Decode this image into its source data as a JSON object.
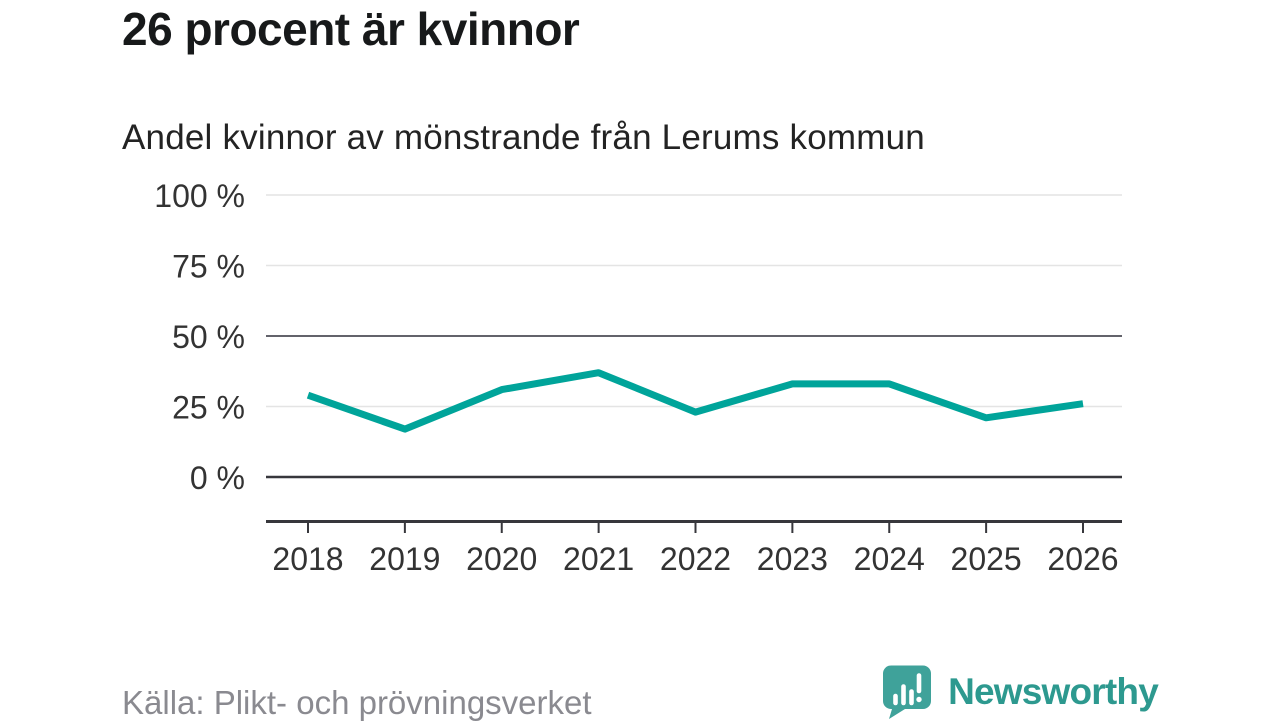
{
  "header": {
    "title": "26 procent är kvinnor",
    "subtitle": "Andel kvinnor av mönstrande från Lerums kommun"
  },
  "chart_data": {
    "type": "line",
    "title": "26 procent är kvinnor",
    "subtitle": "Andel kvinnor av mönstrande från Lerums kommun",
    "categories": [
      "2018",
      "2019",
      "2020",
      "2021",
      "2022",
      "2023",
      "2024",
      "2025",
      "2026"
    ],
    "series": [
      {
        "name": "Andel kvinnor av mönstrande",
        "values": [
          29,
          17,
          31,
          37,
          23,
          33,
          33,
          21,
          26
        ]
      }
    ],
    "unit": "%",
    "xlabel": "",
    "ylabel": "",
    "ylim": [
      0,
      100
    ],
    "yticks": [
      {
        "value": 0,
        "label": "0 %"
      },
      {
        "value": 25,
        "label": "25 %"
      },
      {
        "value": 50,
        "label": "50 %"
      },
      {
        "value": 75,
        "label": "75 %"
      },
      {
        "value": 100,
        "label": "100 %"
      }
    ],
    "grid": true,
    "emphasized_gridline": 50,
    "legend_position": "none"
  },
  "footer": {
    "source": "Källa: Plikt- och prövningsverket",
    "brand": "Newsworthy"
  },
  "colors": {
    "line": "#00a49a",
    "logo_teal": "#3fa29a",
    "wordmark_teal": "#2d998f",
    "title_text": "#17191a",
    "axis_text": "#333333",
    "source_text": "#8a8a90"
  }
}
